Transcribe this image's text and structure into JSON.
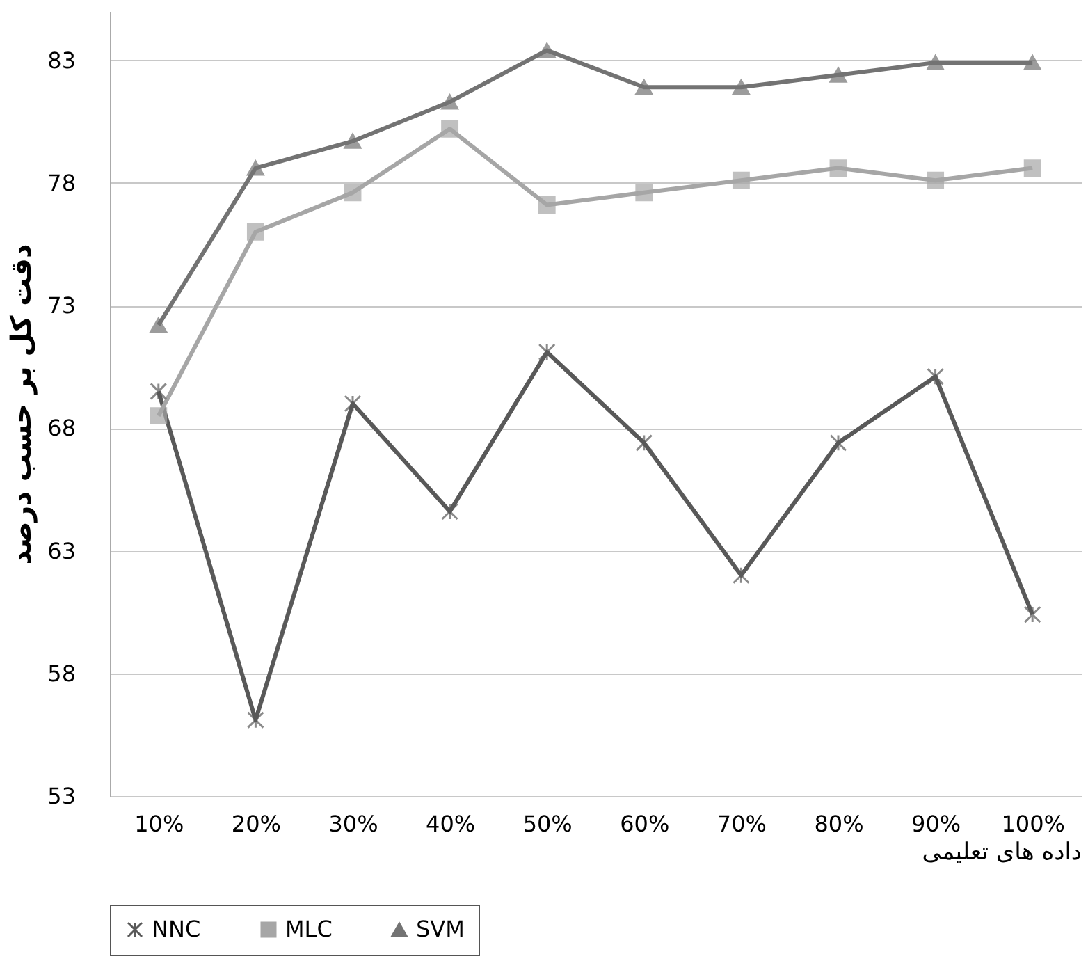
{
  "chart_data": {
    "type": "line",
    "xlabel": "داده های تعلیمی",
    "ylabel": "دقت کل بر حسب درصد",
    "categories": [
      "10%",
      "20%",
      "30%",
      "40%",
      "50%",
      "60%",
      "70%",
      "80%",
      "90%",
      "100%"
    ],
    "series": [
      {
        "name": "NNC",
        "color": "#595959",
        "marker": "cross",
        "values": [
          69.5,
          56.1,
          69.0,
          64.6,
          71.1,
          67.4,
          62.0,
          67.4,
          70.1,
          60.4
        ]
      },
      {
        "name": "MLC",
        "color": "#a6a6a6",
        "marker": "square",
        "values": [
          68.5,
          76.0,
          77.6,
          80.2,
          77.1,
          77.6,
          78.1,
          78.6,
          78.1,
          78.6
        ]
      },
      {
        "name": "SVM",
        "color": "#737373",
        "marker": "triangle",
        "values": [
          72.2,
          78.6,
          79.7,
          81.3,
          83.4,
          81.9,
          81.9,
          82.4,
          82.9,
          82.9
        ]
      }
    ],
    "ylim": [
      53,
      85
    ],
    "yticks": [
      53,
      58,
      63,
      68,
      73,
      78,
      83
    ],
    "grid": "y",
    "legend": "bottom",
    "line_style": "solid"
  }
}
